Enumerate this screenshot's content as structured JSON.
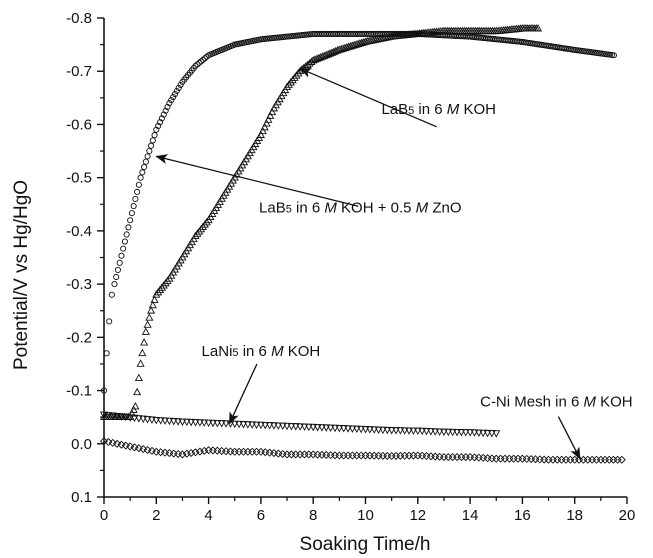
{
  "chart_data": {
    "type": "scatter",
    "xlabel": "Soaking Time/h",
    "ylabel": "Potential/V vs  Hg/HgO",
    "xlim": [
      0,
      20
    ],
    "ylim": [
      0.1,
      -0.8
    ],
    "xticks": [
      "0",
      "2",
      "4",
      "6",
      "8",
      "10",
      "12",
      "14",
      "16",
      "18",
      "20"
    ],
    "yticks": [
      "-0.8",
      "-0.7",
      "-0.6",
      "-0.5",
      "-0.4",
      "-0.3",
      "-0.2",
      "-0.1",
      "0.0",
      "0.1"
    ],
    "grid": false,
    "series": [
      {
        "name": "LaB5 in 6 M KOH + 0.5 M ZnO",
        "marker": "circle",
        "x": [
          0.0,
          0.1,
          0.2,
          0.3,
          0.4,
          0.6,
          0.8,
          1.0,
          1.2,
          1.4,
          1.6,
          1.8,
          2.0,
          2.5,
          3.0,
          3.5,
          4.0,
          5.0,
          6.0,
          7.0,
          8.0,
          10.0,
          12.0,
          14.0,
          16.0,
          18.0,
          19.5
        ],
        "y": [
          -0.1,
          -0.17,
          -0.23,
          -0.28,
          -0.3,
          -0.34,
          -0.38,
          -0.42,
          -0.46,
          -0.5,
          -0.53,
          -0.56,
          -0.59,
          -0.64,
          -0.68,
          -0.71,
          -0.73,
          -0.75,
          -0.76,
          -0.765,
          -0.77,
          -0.77,
          -0.77,
          -0.765,
          -0.755,
          -0.74,
          -0.73
        ]
      },
      {
        "name": "LaB5 in 6 M KOH",
        "marker": "triangle-up",
        "x": [
          0.0,
          0.5,
          1.0,
          1.2,
          1.4,
          1.6,
          1.8,
          2.0,
          2.5,
          3.0,
          3.5,
          4.0,
          4.5,
          5.0,
          5.5,
          6.0,
          6.5,
          7.0,
          7.5,
          8.0,
          9.0,
          10.0,
          11.0,
          12.0,
          13.0,
          14.0,
          15.0,
          16.0,
          16.6
        ],
        "y": [
          -0.05,
          -0.05,
          -0.05,
          -0.07,
          -0.15,
          -0.21,
          -0.25,
          -0.28,
          -0.31,
          -0.35,
          -0.39,
          -0.42,
          -0.46,
          -0.5,
          -0.54,
          -0.58,
          -0.63,
          -0.67,
          -0.7,
          -0.72,
          -0.74,
          -0.755,
          -0.765,
          -0.77,
          -0.775,
          -0.775,
          -0.775,
          -0.78,
          -0.78
        ]
      },
      {
        "name": "LaNi5  in 6 M KOH",
        "marker": "triangle-down",
        "x": [
          0,
          1,
          2,
          3,
          4,
          5,
          6,
          7,
          8,
          9,
          10,
          11,
          12,
          13,
          14,
          15
        ],
        "y": [
          -0.055,
          -0.05,
          -0.045,
          -0.042,
          -0.04,
          -0.038,
          -0.036,
          -0.034,
          -0.032,
          -0.03,
          -0.028,
          -0.026,
          -0.025,
          -0.023,
          -0.022,
          -0.02
        ]
      },
      {
        "name": "C-Ni Mesh in 6 M KOH",
        "marker": "diamond",
        "x": [
          0,
          1,
          2,
          3,
          4,
          5,
          6,
          7,
          8,
          9,
          10,
          11,
          12,
          13,
          14,
          15,
          16,
          17,
          18,
          19,
          19.8
        ],
        "y": [
          -0.005,
          0.005,
          0.015,
          0.02,
          0.012,
          0.015,
          0.015,
          0.02,
          0.02,
          0.022,
          0.022,
          0.023,
          0.022,
          0.025,
          0.025,
          0.028,
          0.028,
          0.03,
          0.03,
          0.03,
          0.03
        ]
      }
    ],
    "annotations": [
      {
        "text": "LaB5 in 6 M KOH",
        "parts": [
          {
            "t": "LaB"
          },
          {
            "t": "5",
            "sub": true
          },
          {
            "t": " in 6 "
          },
          {
            "t": "M",
            "italic": true
          },
          {
            "t": " KOH"
          }
        ],
        "target": [
          7.5,
          -0.705
        ],
        "anchor": [
          12.8,
          -0.62
        ]
      },
      {
        "text": "LaB5 in 6 M KOH + 0.5 M ZnO",
        "parts": [
          {
            "t": "LaB"
          },
          {
            "t": "5",
            "sub": true
          },
          {
            "t": " in 6 "
          },
          {
            "t": "M",
            "italic": true
          },
          {
            "t": " KOH + 0.5 "
          },
          {
            "t": "M",
            "italic": true
          },
          {
            "t": " ZnO"
          }
        ],
        "target": [
          2.0,
          -0.54
        ],
        "anchor": [
          9.8,
          -0.435
        ]
      },
      {
        "text": "LaNi5  in 6 M KOH",
        "parts": [
          {
            "t": "LaNi"
          },
          {
            "t": "5",
            "sub": true
          },
          {
            "t": "  in 6 "
          },
          {
            "t": "M",
            "italic": true
          },
          {
            "t": " KOH"
          }
        ],
        "target": [
          4.8,
          -0.038
        ],
        "anchor": [
          6.0,
          -0.165
        ]
      },
      {
        "text": "C-Ni Mesh in 6 M KOH",
        "parts": [
          {
            "t": "C-Ni Mesh in 6 "
          },
          {
            "t": "M",
            "italic": true
          },
          {
            "t": " KOH"
          }
        ],
        "target": [
          18.2,
          0.028
        ],
        "anchor": [
          17.3,
          -0.07
        ]
      }
    ]
  }
}
